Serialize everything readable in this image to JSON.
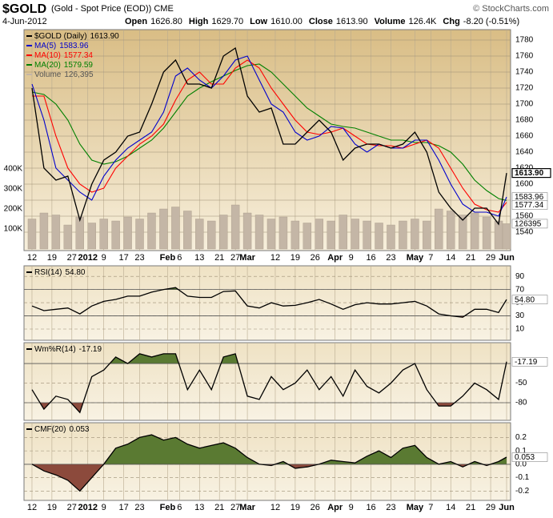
{
  "header": {
    "title": "$GOLD",
    "subtitle": "(Gold - Spot Price (EOD)) CME",
    "date": "4-Jun-2012",
    "stats": [
      {
        "label": "Open",
        "value": "1626.80"
      },
      {
        "label": "High",
        "value": "1629.70"
      },
      {
        "label": "Low",
        "value": "1610.00"
      },
      {
        "label": "Close",
        "value": "1613.90"
      },
      {
        "label": "Volume",
        "value": "126.4K"
      },
      {
        "label": "Chg",
        "value": "-8.20 (-0.51%)"
      }
    ],
    "copyright": "© StockCharts.com"
  },
  "chart_data": [
    {
      "type": "line",
      "x": [
        0,
        3,
        6,
        9,
        12,
        15,
        18,
        21,
        24,
        27,
        30,
        33,
        36,
        39,
        42,
        45,
        48,
        51,
        54,
        57,
        60,
        63,
        66,
        69,
        72,
        75,
        78,
        81,
        84,
        87,
        90,
        93,
        96,
        99,
        102,
        105,
        108,
        111,
        114,
        117,
        119
      ],
      "xlim": [
        -2,
        120
      ],
      "xticks": [
        {
          "value": 0,
          "label": "12"
        },
        {
          "value": 5,
          "label": "19"
        },
        {
          "value": 10,
          "label": "27"
        },
        {
          "value": 14,
          "label": "2012"
        },
        {
          "value": 18,
          "label": "9"
        },
        {
          "value": 23,
          "label": "17"
        },
        {
          "value": 27,
          "label": "23"
        },
        {
          "value": 34,
          "label": "Feb"
        },
        {
          "value": 37,
          "label": "6"
        },
        {
          "value": 42,
          "label": "13"
        },
        {
          "value": 47,
          "label": "21"
        },
        {
          "value": 51,
          "label": "27"
        },
        {
          "value": 54,
          "label": "Mar"
        },
        {
          "value": 61,
          "label": "12"
        },
        {
          "value": 66,
          "label": "19"
        },
        {
          "value": 71,
          "label": "26"
        },
        {
          "value": 76,
          "label": "Apr"
        },
        {
          "value": 80,
          "label": "9"
        },
        {
          "value": 85,
          "label": "16"
        },
        {
          "value": 90,
          "label": "23"
        },
        {
          "value": 96,
          "label": "May"
        },
        {
          "value": 100,
          "label": "7"
        },
        {
          "value": 105,
          "label": "14"
        },
        {
          "value": 110,
          "label": "21"
        },
        {
          "value": 115,
          "label": "29"
        },
        {
          "value": 119,
          "label": "Jun"
        }
      ],
      "ylim": [
        1517,
        1793
      ],
      "yticks": [
        1540,
        1560,
        1580,
        1600,
        1620,
        1640,
        1660,
        1680,
        1700,
        1720,
        1740,
        1760,
        1780
      ],
      "y2lim": [
        -8000,
        1096000
      ],
      "y2ticks": [
        {
          "value": 100000,
          "label": "100K"
        },
        {
          "value": 200000,
          "label": "200K"
        },
        {
          "value": 300000,
          "label": "300K"
        },
        {
          "value": 400000,
          "label": "400K"
        }
      ],
      "series": [
        {
          "name": "$GOLD (Daily)",
          "value_label": "1613.90",
          "color": "#000000",
          "box": true,
          "values": [
            1720,
            1620,
            1605,
            1610,
            1555,
            1600,
            1630,
            1640,
            1660,
            1665,
            1700,
            1740,
            1755,
            1725,
            1725,
            1720,
            1760,
            1770,
            1710,
            1690,
            1695,
            1650,
            1650,
            1665,
            1680,
            1665,
            1630,
            1645,
            1650,
            1650,
            1645,
            1650,
            1665,
            1640,
            1590,
            1570,
            1555,
            1570,
            1570,
            1550,
            1613.9
          ]
        },
        {
          "name": "MA(5)",
          "value_label": "1583.96",
          "color": "#0000cc",
          "box": true,
          "values": [
            1725,
            1680,
            1620,
            1605,
            1590,
            1580,
            1610,
            1630,
            1645,
            1655,
            1665,
            1690,
            1735,
            1745,
            1730,
            1720,
            1735,
            1755,
            1760,
            1730,
            1700,
            1690,
            1665,
            1655,
            1660,
            1672,
            1670,
            1650,
            1640,
            1650,
            1645,
            1645,
            1655,
            1655,
            1630,
            1600,
            1575,
            1565,
            1565,
            1560,
            1583.96
          ]
        },
        {
          "name": "MA(10)",
          "value_label": "1577.34",
          "color": "#ff0000",
          "box": true,
          "values": [
            1710,
            1710,
            1660,
            1620,
            1600,
            1590,
            1595,
            1620,
            1635,
            1650,
            1660,
            1675,
            1705,
            1730,
            1740,
            1725,
            1725,
            1745,
            1755,
            1745,
            1720,
            1700,
            1680,
            1665,
            1662,
            1665,
            1670,
            1660,
            1650,
            1648,
            1648,
            1645,
            1650,
            1655,
            1645,
            1620,
            1595,
            1575,
            1568,
            1565,
            1577.34
          ]
        },
        {
          "name": "MA(20)",
          "value_label": "1579.59",
          "color": "#008000",
          "values": [
            1715,
            1712,
            1700,
            1680,
            1650,
            1630,
            1625,
            1628,
            1635,
            1645,
            1655,
            1670,
            1690,
            1710,
            1720,
            1728,
            1735,
            1742,
            1748,
            1750,
            1740,
            1725,
            1710,
            1695,
            1685,
            1675,
            1672,
            1670,
            1665,
            1660,
            1655,
            1655,
            1652,
            1652,
            1648,
            1640,
            1625,
            1605,
            1592,
            1582,
            1579.59
          ]
        },
        {
          "name": "Volume",
          "value_label": "126,395",
          "color": "#c4b6a6",
          "type": "bar",
          "axis": "y2",
          "box": true,
          "values": [
            150000,
            180000,
            170000,
            120000,
            160000,
            130000,
            150000,
            140000,
            160000,
            150000,
            180000,
            200000,
            210000,
            190000,
            150000,
            140000,
            170000,
            220000,
            180000,
            170000,
            150000,
            160000,
            140000,
            130000,
            150000,
            140000,
            170000,
            150000,
            140000,
            130000,
            120000,
            140000,
            150000,
            140000,
            200000,
            190000,
            170000,
            180000,
            160000,
            140000,
            126395
          ]
        }
      ]
    },
    {
      "type": "line",
      "x": [
        0,
        3,
        6,
        9,
        12,
        15,
        18,
        21,
        24,
        27,
        30,
        33,
        36,
        39,
        42,
        45,
        48,
        51,
        54,
        57,
        60,
        63,
        66,
        69,
        72,
        75,
        78,
        81,
        84,
        87,
        90,
        93,
        96,
        99,
        102,
        105,
        108,
        111,
        114,
        117,
        119
      ],
      "xlim": [
        -2,
        120
      ],
      "ylim": [
        -7,
        106
      ],
      "yticks": [
        10,
        30,
        50,
        70,
        90
      ],
      "fill_levels": [
        70,
        30
      ],
      "fill_colors": [
        "#5a7a32",
        "#8c4a3c"
      ],
      "series": [
        {
          "name": "RSI(14)",
          "value_label": "54.80",
          "color": "#000000",
          "box": true,
          "values": [
            45,
            38,
            40,
            42,
            33,
            45,
            52,
            55,
            60,
            60,
            66,
            70,
            73,
            60,
            58,
            58,
            67,
            68,
            45,
            42,
            50,
            45,
            46,
            50,
            55,
            48,
            40,
            47,
            50,
            48,
            48,
            50,
            52,
            45,
            33,
            30,
            28,
            40,
            40,
            35,
            54.8
          ]
        }
      ]
    },
    {
      "type": "line",
      "x": [
        0,
        3,
        6,
        9,
        12,
        15,
        18,
        21,
        24,
        27,
        30,
        33,
        36,
        39,
        42,
        45,
        48,
        51,
        54,
        57,
        60,
        63,
        66,
        69,
        72,
        75,
        78,
        81,
        84,
        87,
        90,
        93,
        96,
        99,
        102,
        105,
        108,
        111,
        114,
        117,
        119
      ],
      "xlim": [
        -2,
        120
      ],
      "ylim": [
        -107,
        12
      ],
      "yticks": [
        -80,
        -50
      ],
      "fill_levels": [
        -20,
        -80
      ],
      "fill_colors": [
        "#5a7a32",
        "#8c4a3c"
      ],
      "series": [
        {
          "name": "Wm%R(14)",
          "value_label": "-17.19",
          "color": "#000000",
          "box": true,
          "values": [
            -60,
            -90,
            -70,
            -75,
            -95,
            -40,
            -30,
            -10,
            -20,
            -5,
            -10,
            -5,
            -5,
            -60,
            -30,
            -60,
            -10,
            -5,
            -70,
            -75,
            -40,
            -60,
            -50,
            -30,
            -60,
            -40,
            -70,
            -30,
            -55,
            -65,
            -50,
            -30,
            -20,
            -60,
            -85,
            -85,
            -70,
            -50,
            -60,
            -75,
            -17.19
          ]
        }
      ]
    },
    {
      "type": "line",
      "x": [
        0,
        3,
        6,
        9,
        12,
        15,
        18,
        21,
        24,
        27,
        30,
        33,
        36,
        39,
        42,
        45,
        48,
        51,
        54,
        57,
        60,
        63,
        66,
        69,
        72,
        75,
        78,
        81,
        84,
        87,
        90,
        93,
        96,
        99,
        102,
        105,
        108,
        111,
        114,
        117,
        119
      ],
      "xlim": [
        -2,
        120
      ],
      "xticks": [
        {
          "value": 0,
          "label": "12"
        },
        {
          "value": 5,
          "label": "19"
        },
        {
          "value": 10,
          "label": "27"
        },
        {
          "value": 14,
          "label": "2012"
        },
        {
          "value": 18,
          "label": "9"
        },
        {
          "value": 23,
          "label": "17"
        },
        {
          "value": 27,
          "label": "23"
        },
        {
          "value": 34,
          "label": "Feb"
        },
        {
          "value": 37,
          "label": "6"
        },
        {
          "value": 42,
          "label": "13"
        },
        {
          "value": 47,
          "label": "21"
        },
        {
          "value": 51,
          "label": "27"
        },
        {
          "value": 54,
          "label": "Mar"
        },
        {
          "value": 61,
          "label": "12"
        },
        {
          "value": 66,
          "label": "19"
        },
        {
          "value": 71,
          "label": "26"
        },
        {
          "value": 76,
          "label": "Apr"
        },
        {
          "value": 80,
          "label": "9"
        },
        {
          "value": 85,
          "label": "16"
        },
        {
          "value": 90,
          "label": "23"
        },
        {
          "value": 96,
          "label": "May"
        },
        {
          "value": 100,
          "label": "7"
        },
        {
          "value": 105,
          "label": "14"
        },
        {
          "value": 110,
          "label": "21"
        },
        {
          "value": 115,
          "label": "29"
        },
        {
          "value": 119,
          "label": "Jun"
        }
      ],
      "ylim": [
        -0.27,
        0.31
      ],
      "yticks": [
        -0.2,
        -0.1,
        {
          "value": 0,
          "label": "0.0"
        },
        0.1,
        0.2
      ],
      "fill_levels": [
        0,
        0
      ],
      "fill_colors": [
        "#5a7a32",
        "#8c4a3c"
      ],
      "series": [
        {
          "name": "CMF(20)",
          "value_label": "0.053",
          "color": "#000000",
          "box": true,
          "values": [
            0,
            -0.05,
            -0.08,
            -0.12,
            -0.2,
            -0.1,
            0,
            0.12,
            0.15,
            0.2,
            0.22,
            0.18,
            0.2,
            0.15,
            0.12,
            0.14,
            0.16,
            0.12,
            0.05,
            0,
            -0.01,
            0.02,
            -0.03,
            -0.02,
            0,
            0.03,
            0.02,
            0.01,
            0.06,
            0.1,
            0.05,
            0.12,
            0.14,
            0.05,
            0,
            0.02,
            -0.02,
            0.02,
            -0.01,
            0.02,
            0.053
          ]
        }
      ]
    }
  ]
}
